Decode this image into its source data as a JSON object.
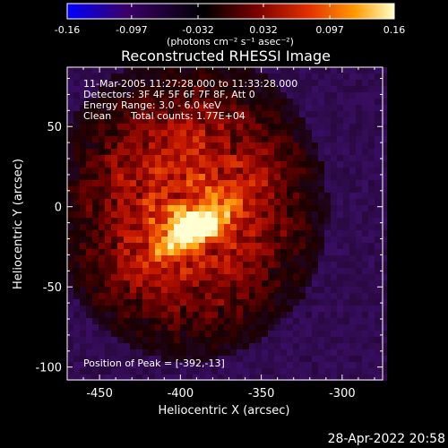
{
  "colorbar": {
    "ticks": [
      -0.16,
      -0.097,
      -0.032,
      0.032,
      0.097,
      0.16
    ],
    "tick_labels": [
      "-0.16",
      "-0.097",
      "-0.032",
      "0.032",
      "0.097",
      "0.16"
    ],
    "unit_label": "(photons cm⁻² s⁻¹ asec⁻²)",
    "range": [
      -0.16,
      0.16
    ],
    "colors": [
      "#0000ff",
      "#3b0068",
      "#000000",
      "#7a0000",
      "#e43000",
      "#ff9a00",
      "#ffffc8"
    ]
  },
  "chart_data": {
    "type": "heatmap",
    "title": "Reconstructed RHESSI Image",
    "xlabel": "Heliocentric X (arcsec)",
    "ylabel": "Heliocentric Y (arcsec)",
    "xlim": [
      -470,
      -275
    ],
    "ylim": [
      -108,
      87
    ],
    "x_ticks": [
      -450,
      -400,
      -350,
      -300
    ],
    "y_ticks": [
      -100,
      -50,
      0,
      50
    ],
    "x_tick_labels": [
      "-450",
      "-400",
      "-350",
      "-300"
    ],
    "y_tick_labels": [
      "-100",
      "-50",
      "0",
      "50"
    ],
    "peak": [
      -392,
      -13
    ],
    "source_region_center": [
      -395,
      0
    ]
  },
  "annotations": {
    "time_range": "11-Mar-2005 11:27:28.000 to 11:33:28.000",
    "detectors": "Detectors: 3F 4F 5F 6F 7F 8F, Att 0",
    "energy_range": "Energy Range: 3.0 - 6.0 keV",
    "clean_label": "Clean",
    "total_counts": "Total counts: 1.77E+04",
    "peak_position": "Position of Peak = [-392,-13]"
  },
  "footer": {
    "timestamp": "28-Apr-2022 20:58"
  }
}
